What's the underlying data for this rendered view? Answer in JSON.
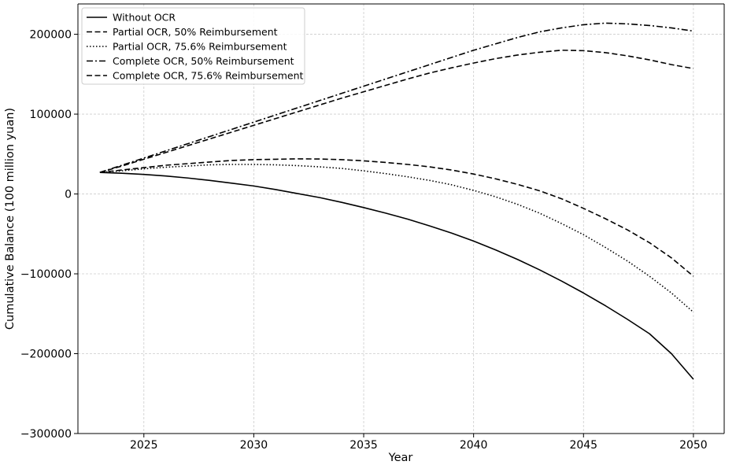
{
  "chart_data": {
    "type": "line",
    "title": "",
    "xlabel": "Year",
    "ylabel": "Cumulative Balance (100 million yuan)",
    "xlim": [
      2022,
      2051.4
    ],
    "ylim": [
      -300000,
      238000
    ],
    "x_ticks": [
      2025,
      2030,
      2035,
      2040,
      2045,
      2050
    ],
    "y_ticks": [
      -300000,
      -200000,
      -100000,
      0,
      100000,
      200000
    ],
    "x_tick_labels": [
      "2025",
      "2030",
      "2035",
      "2040",
      "2045",
      "2050"
    ],
    "y_tick_labels": [
      "−300000",
      "−200000",
      "−100000",
      "0",
      "100000",
      "200000"
    ],
    "grid": true,
    "legend_position": "top-left",
    "x": [
      2023,
      2024,
      2025,
      2026,
      2027,
      2028,
      2029,
      2030,
      2031,
      2032,
      2033,
      2034,
      2035,
      2036,
      2037,
      2038,
      2039,
      2040,
      2041,
      2042,
      2043,
      2044,
      2045,
      2046,
      2047,
      2048,
      2049,
      2050
    ],
    "series": [
      {
        "name": "Without OCR",
        "dash": "solid",
        "values": [
          27000,
          26000,
          24500,
          22500,
          20000,
          17000,
          13500,
          10000,
          5500,
          500,
          -4500,
          -10500,
          -17000,
          -24000,
          -31500,
          -40000,
          -49000,
          -59000,
          -70000,
          -82000,
          -95000,
          -109000,
          -124000,
          -140000,
          -157000,
          -175000,
          -200000,
          -232000
        ]
      },
      {
        "name": "Partial OCR, 50% Reimbursement",
        "dash": "dashed",
        "values": [
          27000,
          30000,
          33000,
          36000,
          38000,
          40000,
          42000,
          43000,
          43500,
          44000,
          43800,
          43000,
          41500,
          39500,
          37000,
          34000,
          30000,
          25000,
          19000,
          12000,
          4000,
          -6000,
          -18000,
          -31000,
          -45000,
          -61000,
          -80000,
          -103000
        ]
      },
      {
        "name": "Partial OCR, 75.6% Reimbursement",
        "dash": "dotted",
        "values": [
          27000,
          29000,
          31500,
          33500,
          35000,
          36500,
          37000,
          37000,
          36500,
          35500,
          34000,
          32000,
          29000,
          25500,
          21500,
          17000,
          11500,
          4500,
          -3500,
          -13000,
          -24000,
          -37000,
          -51000,
          -67000,
          -84000,
          -103000,
          -124000,
          -148000
        ]
      },
      {
        "name": "Complete OCR, 50% Reimbursement",
        "dash": "dashdot",
        "values": [
          27000,
          36000,
          45000,
          54000,
          63000,
          72000,
          81000,
          90000,
          99000,
          108000,
          117000,
          126000,
          135000,
          144000,
          153000,
          162000,
          171000,
          180000,
          188000,
          196000,
          203000,
          208000,
          212000,
          214000,
          213000,
          211000,
          208000,
          204000
        ]
      },
      {
        "name": "Complete OCR, 75.6% Reimbursement",
        "dash": "dashed",
        "values": [
          27000,
          35000,
          43500,
          52000,
          60500,
          69000,
          77500,
          86000,
          94500,
          103000,
          111500,
          120000,
          128000,
          136000,
          144000,
          151500,
          158000,
          164000,
          169500,
          174000,
          177500,
          180000,
          179500,
          177000,
          173000,
          168000,
          162000,
          157000
        ]
      }
    ]
  }
}
